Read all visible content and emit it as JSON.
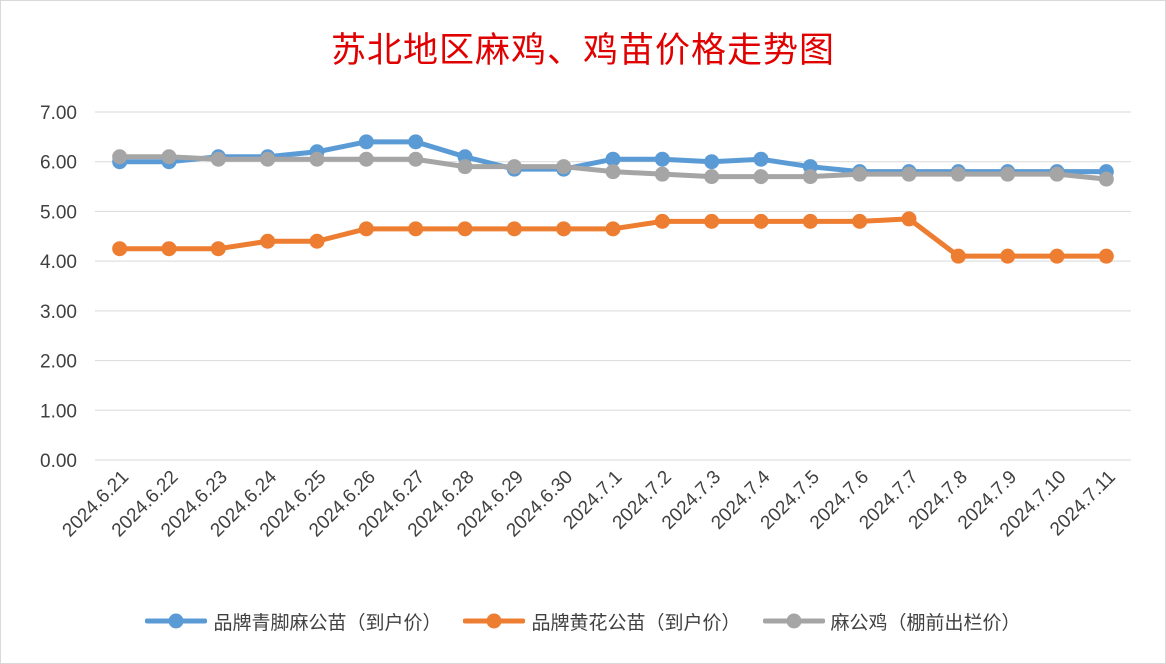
{
  "chart_data": {
    "type": "line",
    "title": "苏北地区麻鸡、鸡苗价格走势图",
    "xlabel": "",
    "ylabel": "",
    "ylim": [
      0,
      7
    ],
    "y_ticks": [
      "0.00",
      "1.00",
      "2.00",
      "3.00",
      "4.00",
      "5.00",
      "6.00",
      "7.00"
    ],
    "grid": true,
    "legend_position": "bottom",
    "categories": [
      "2024.6.21",
      "2024.6.22",
      "2024.6.23",
      "2024.6.24",
      "2024.6.25",
      "2024.6.26",
      "2024.6.27",
      "2024.6.28",
      "2024.6.29",
      "2024.6.30",
      "2024.7.1",
      "2024.7.2",
      "2024.7.3",
      "2024.7.4",
      "2024.7.5",
      "2024.7.6",
      "2024.7.7",
      "2024.7.8",
      "2024.7.9",
      "2024.7.10",
      "2024.7.11"
    ],
    "series": [
      {
        "name": "品牌青脚麻公苗（到户价）",
        "color": "#5b9bd5",
        "values": [
          6.0,
          6.0,
          6.1,
          6.1,
          6.2,
          6.4,
          6.4,
          6.1,
          5.85,
          5.85,
          6.05,
          6.05,
          6.0,
          6.05,
          5.9,
          5.8,
          5.8,
          5.8,
          5.8,
          5.8,
          5.8
        ]
      },
      {
        "name": "品牌黄花公苗（到户价）",
        "color": "#ed7d31",
        "values": [
          4.25,
          4.25,
          4.25,
          4.4,
          4.4,
          4.65,
          4.65,
          4.65,
          4.65,
          4.65,
          4.65,
          4.8,
          4.8,
          4.8,
          4.8,
          4.8,
          4.85,
          4.1,
          4.1,
          4.1,
          4.1
        ]
      },
      {
        "name": "麻公鸡（棚前出栏价）",
        "color": "#a5a5a5",
        "values": [
          6.1,
          6.1,
          6.05,
          6.05,
          6.05,
          6.05,
          6.05,
          5.9,
          5.9,
          5.9,
          5.8,
          5.75,
          5.7,
          5.7,
          5.7,
          5.75,
          5.75,
          5.75,
          5.75,
          5.75,
          5.65
        ]
      }
    ]
  }
}
